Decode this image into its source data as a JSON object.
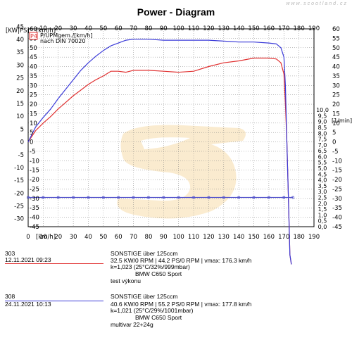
{
  "header": {
    "title": "Power - Diagram",
    "watermark": "www.scootland.cz"
  },
  "axes": {
    "left_unit": "[KW|PS]",
    "speed_unit": "[km/h]",
    "right_unit": "[1/min]",
    "legend_power": "P/UPMgem./[km/h]",
    "legend_norm": "nach DIN 70020"
  },
  "colors": {
    "run1": "#e03030",
    "run2": "#3a3ad8",
    "frame": "#000000",
    "grid": "#7f7f7f",
    "watermark": "#f3c878"
  },
  "runs": [
    {
      "id": "303",
      "date": "12.11.2021  09:23",
      "category": "SONSTIGE über 125ccm",
      "result": "32.5 KW/0 RPM  |  44.2 PS/0 RPM  |  vmax: 176.3 km/h",
      "correction": "k=1,023 (25°C/32%/999mbar)",
      "vehicle": "BMW C650 Sport",
      "note": "test výkonu"
    },
    {
      "id": "308",
      "date": "24.11.2021  10:13",
      "category": "SONSTIGE über 125ccm",
      "result": "40.6 KW/0 RPM  |  55.2 PS/0 RPM  |  vmax: 177.8 km/h",
      "correction": "k=1,021 (25°C/29%/1001mbar)",
      "vehicle": "BMW C650 Sport",
      "note": "multivar 22+24g"
    }
  ],
  "chart_data": {
    "type": "line",
    "title": "Power - Diagram",
    "xlabel": "[km/h]",
    "ylabel": "[KW|PS]",
    "y2label": "[1/min]",
    "x_ticks": [
      0,
      10,
      20,
      30,
      40,
      50,
      60,
      70,
      80,
      90,
      100,
      110,
      120,
      130,
      140,
      150,
      160,
      170,
      180,
      190
    ],
    "kw_ticks": [
      45,
      40,
      35,
      30,
      25,
      20,
      15,
      10,
      5,
      0,
      -5,
      -10,
      -15,
      -20,
      -25,
      -30
    ],
    "ps_ticks": [
      60,
      55,
      50,
      45,
      40,
      35,
      30,
      25,
      20,
      15,
      10,
      5,
      0,
      -5,
      -10,
      -15,
      -20,
      -25,
      -30,
      -35,
      -40,
      -45
    ],
    "right_ticks": [
      60,
      55,
      50,
      45,
      40,
      35,
      30,
      25,
      20,
      15,
      10,
      5,
      0,
      -5,
      -10,
      -15,
      -20,
      -25,
      -30,
      -35,
      -40,
      -45
    ],
    "rpm_ticks": [
      "0,0",
      "0,5",
      "1,0",
      "1,5",
      "2,0",
      "2,5",
      "3,0",
      "3,5",
      "4,0",
      "4,5",
      "5,0",
      "5,5",
      "6,0",
      "6,5",
      "7,0",
      "7,5",
      "8,0",
      "8,5",
      "9,0",
      "9,5",
      "10,0"
    ],
    "xlim": [
      0,
      190
    ],
    "ylim_ps": [
      -45,
      60
    ],
    "grid": true,
    "series": [
      {
        "name": "303",
        "color": "#e03030",
        "x": [
          0,
          5,
          10,
          15,
          20,
          25,
          30,
          35,
          40,
          45,
          50,
          55,
          60,
          65,
          70,
          80,
          90,
          100,
          110,
          120,
          130,
          140,
          150,
          160,
          165,
          168,
          170,
          171,
          172,
          173,
          174,
          175
        ],
        "y": [
          0,
          6,
          10,
          13.5,
          17.5,
          21,
          24.5,
          27.5,
          30.5,
          33,
          35,
          37.5,
          37.5,
          37,
          38,
          38,
          37.5,
          37,
          37.5,
          40,
          42,
          43,
          44.5,
          44.5,
          44,
          42,
          36,
          20,
          0,
          -30,
          -60,
          -65
        ]
      },
      {
        "name": "308",
        "color": "#3a3ad8",
        "x": [
          0,
          5,
          10,
          15,
          20,
          25,
          30,
          35,
          40,
          45,
          50,
          55,
          60,
          65,
          70,
          80,
          90,
          100,
          110,
          120,
          130,
          140,
          150,
          160,
          165,
          168,
          170,
          171,
          172,
          173,
          174,
          175
        ],
        "y": [
          0,
          8,
          13,
          17.5,
          23,
          28,
          33,
          38,
          42,
          45.5,
          48.5,
          51,
          52.5,
          54,
          54.5,
          54.5,
          54,
          54,
          54,
          54,
          53.5,
          53,
          53,
          52.5,
          52,
          50,
          45,
          30,
          0,
          -30,
          -60,
          -65
        ]
      },
      {
        "name": "RPM",
        "color": "#5555cc",
        "x": [
          0,
          10,
          20,
          30,
          40,
          50,
          60,
          70,
          80,
          90,
          100,
          110,
          120,
          130,
          140,
          150,
          160,
          170,
          176
        ],
        "y": [
          -29.5,
          -29.5,
          -29.5,
          -29.5,
          -29.5,
          -29.5,
          -29.5,
          -29.5,
          -29.5,
          -29.5,
          -29.5,
          -29.5,
          -29.5,
          -29.5,
          -29.5,
          -29.5,
          -29.5,
          -29.5,
          -29.5
        ]
      }
    ]
  }
}
